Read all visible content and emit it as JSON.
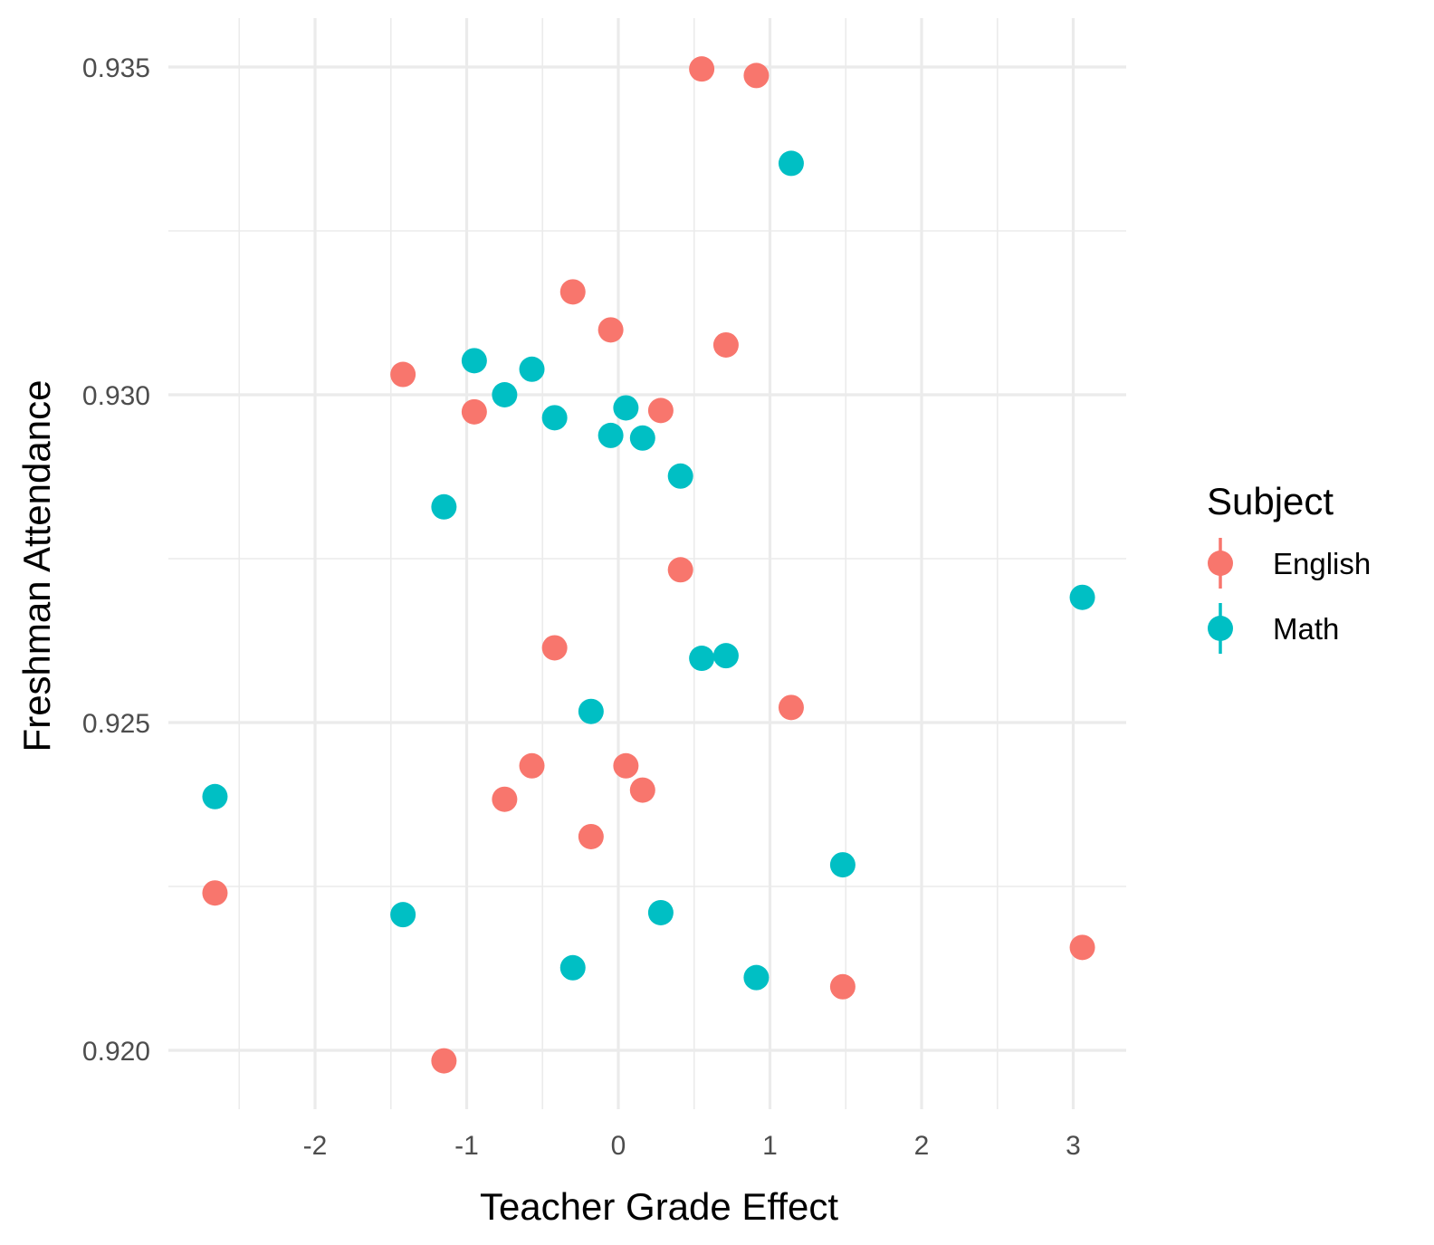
{
  "chart_data": {
    "type": "scatter",
    "title": "",
    "xlabel": "Teacher Grade Effect",
    "ylabel": "Freshman Attendance",
    "xlim": [
      -2.5,
      3.35
    ],
    "ylim": [
      0.9193,
      0.9358
    ],
    "x_ticks": [
      -2,
      -1,
      0,
      1,
      2,
      3
    ],
    "x_tick_labels": [
      "-2",
      "-1",
      "0",
      "1",
      "2",
      "3"
    ],
    "y_ticks": [
      0.92,
      0.925,
      0.93,
      0.935
    ],
    "y_tick_labels": [
      "0.920",
      "0.925",
      "0.930",
      "0.935"
    ],
    "grid": true,
    "legend": {
      "title": "Subject",
      "position": "right",
      "entries": [
        "English",
        "Math"
      ]
    },
    "series": [
      {
        "name": "English",
        "color": "#F8766D",
        "points": [
          {
            "x": 0.55,
            "y": 0.93497
          },
          {
            "x": 0.91,
            "y": 0.93487
          },
          {
            "x": -0.3,
            "y": 0.93157
          },
          {
            "x": -0.05,
            "y": 0.93099
          },
          {
            "x": 0.71,
            "y": 0.93076
          },
          {
            "x": -1.42,
            "y": 0.93031
          },
          {
            "x": -0.95,
            "y": 0.92974
          },
          {
            "x": 0.28,
            "y": 0.92976
          },
          {
            "x": 0.41,
            "y": 0.92733
          },
          {
            "x": -0.42,
            "y": 0.92614
          },
          {
            "x": 1.14,
            "y": 0.92523
          },
          {
            "x": -0.57,
            "y": 0.92434
          },
          {
            "x": 0.05,
            "y": 0.92434
          },
          {
            "x": 0.16,
            "y": 0.92397
          },
          {
            "x": -0.75,
            "y": 0.92383
          },
          {
            "x": -0.18,
            "y": 0.92326
          },
          {
            "x": -2.66,
            "y": 0.9224
          },
          {
            "x": 3.06,
            "y": 0.92157
          },
          {
            "x": 1.48,
            "y": 0.92097
          },
          {
            "x": -1.15,
            "y": 0.91984
          }
        ]
      },
      {
        "name": "Math",
        "color": "#00BFC4",
        "points": [
          {
            "x": 1.14,
            "y": 0.93353
          },
          {
            "x": -0.95,
            "y": 0.93052
          },
          {
            "x": -0.57,
            "y": 0.93039
          },
          {
            "x": -0.75,
            "y": 0.93
          },
          {
            "x": 0.05,
            "y": 0.9298
          },
          {
            "x": -0.42,
            "y": 0.92965
          },
          {
            "x": -0.05,
            "y": 0.92938
          },
          {
            "x": 0.16,
            "y": 0.92934
          },
          {
            "x": 0.41,
            "y": 0.92876
          },
          {
            "x": -1.15,
            "y": 0.92829
          },
          {
            "x": 3.06,
            "y": 0.92691
          },
          {
            "x": 0.55,
            "y": 0.92598
          },
          {
            "x": 0.71,
            "y": 0.92602
          },
          {
            "x": -0.18,
            "y": 0.92517
          },
          {
            "x": -2.66,
            "y": 0.92387
          },
          {
            "x": 1.48,
            "y": 0.92283
          },
          {
            "x": -1.42,
            "y": 0.92207
          },
          {
            "x": 0.28,
            "y": 0.9221
          },
          {
            "x": -0.3,
            "y": 0.92126
          },
          {
            "x": 0.91,
            "y": 0.92111
          }
        ]
      }
    ]
  }
}
